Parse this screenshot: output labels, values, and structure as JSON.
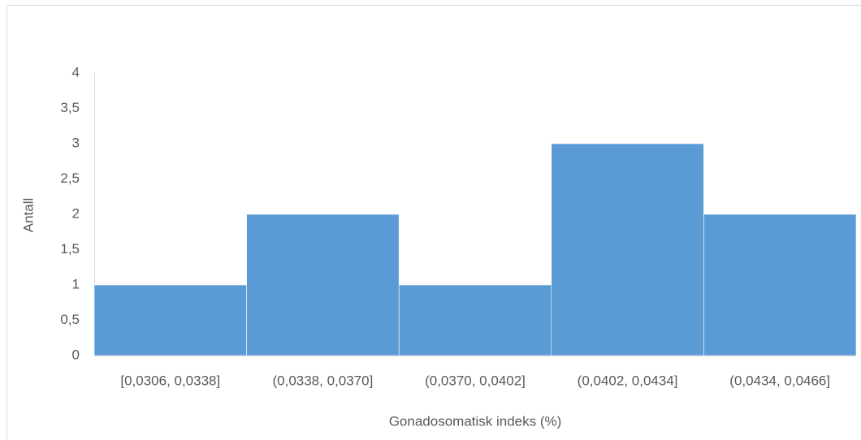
{
  "chart_data": {
    "type": "bar",
    "x_label": "Gonadosomatisk indeks (%)",
    "y_label": "Antall",
    "categories": [
      "[0,0306, 0,0338]",
      "(0,0338, 0,0370]",
      "(0,0370, 0,0402]",
      "(0,0402, 0,0434]",
      "(0,0434, 0,0466]"
    ],
    "values": [
      1,
      2,
      1,
      3,
      2
    ],
    "color": "#5b9bd5",
    "ylim": [
      0,
      4
    ],
    "yticks": [
      0,
      {
        "value": 0.5,
        "label": "0,5"
      },
      1,
      {
        "value": 1.5,
        "label": "1,5"
      },
      2,
      {
        "value": 2.5,
        "label": "2,5"
      },
      3,
      {
        "value": 3.5,
        "label": "3,5"
      },
      4
    ],
    "grid": false
  }
}
